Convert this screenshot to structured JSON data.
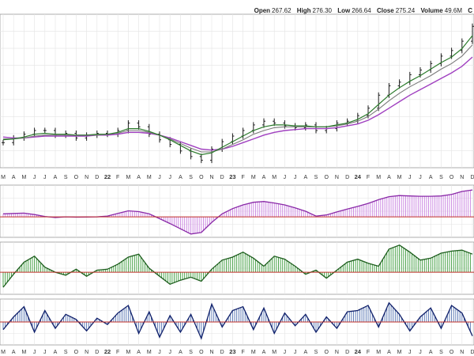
{
  "header": {
    "open_label": "Open",
    "open": "267.62",
    "high_label": "High",
    "high": "276.30",
    "low_label": "Low",
    "low": "266.64",
    "close_label": "Close",
    "close": "275.24",
    "volume_label": "Volume",
    "volume": "49.6M",
    "trailing": "C"
  },
  "colors": {
    "grid": "#e4e4e4",
    "price": "#1a1a1a",
    "ma_fast": "#2a7a2a",
    "ma_mid": "#7a7a7a",
    "ma_slow": "#a040c0",
    "panel1_fill": "#c880e0",
    "panel1_line": "#8a2aa8",
    "panel2_fill": "#3a9a3a",
    "panel2_line": "#1e5e1e",
    "panel3_fill": "#5070b0",
    "panel3_line": "#10206a",
    "zero": "#c0302a"
  },
  "chart_data": [
    {
      "type": "line",
      "panel": "price",
      "x_ticks": [
        "M",
        "A",
        "M",
        "J",
        "J",
        "A",
        "S",
        "O",
        "N",
        "D",
        "22",
        "F",
        "M",
        "A",
        "M",
        "J",
        "J",
        "A",
        "S",
        "O",
        "N",
        "D",
        "23",
        "F",
        "M",
        "A",
        "M",
        "J",
        "J",
        "A",
        "S",
        "O",
        "N",
        "D",
        "24",
        "F",
        "M",
        "A",
        "M",
        "J",
        "J",
        "A",
        "S",
        "O",
        "N",
        "D"
      ],
      "close": [
        147,
        152,
        156,
        160,
        160,
        155,
        157,
        152,
        155,
        157,
        156,
        160,
        168,
        164,
        156,
        150,
        145,
        138,
        132,
        128,
        140,
        148,
        154,
        160,
        166,
        170,
        168,
        165,
        163,
        166,
        160,
        162,
        168,
        170,
        176,
        184,
        198,
        208,
        212,
        220,
        225,
        232,
        240,
        246,
        256,
        272
      ],
      "ma_fast": [
        150,
        151,
        153,
        156,
        157,
        156,
        156,
        155,
        155,
        156,
        156,
        158,
        162,
        162,
        159,
        155,
        150,
        144,
        138,
        134,
        136,
        142,
        148,
        154,
        160,
        164,
        166,
        166,
        165,
        165,
        164,
        164,
        166,
        168,
        172,
        178,
        188,
        198,
        206,
        213,
        219,
        226,
        233,
        239,
        248,
        262
      ],
      "ma_mid": [
        151,
        151,
        152,
        154,
        155,
        155,
        155,
        155,
        155,
        155,
        156,
        157,
        160,
        160,
        158,
        155,
        151,
        146,
        141,
        137,
        137,
        140,
        145,
        150,
        156,
        160,
        163,
        164,
        164,
        164,
        164,
        164,
        165,
        167,
        170,
        175,
        183,
        192,
        200,
        207,
        213,
        219,
        226,
        232,
        240,
        252
      ],
      "ma_slow": [
        153,
        152,
        152,
        153,
        154,
        154,
        154,
        154,
        154,
        155,
        155,
        156,
        158,
        158,
        157,
        155,
        152,
        148,
        144,
        140,
        139,
        140,
        143,
        147,
        151,
        155,
        158,
        160,
        161,
        162,
        162,
        162,
        163,
        165,
        167,
        171,
        177,
        184,
        191,
        198,
        204,
        210,
        216,
        222,
        229,
        239
      ],
      "y_range": [
        120,
        285
      ]
    },
    {
      "type": "area",
      "panel": "indicator_1",
      "values": [
        0.8,
        0.9,
        1.0,
        0.6,
        0.1,
        -0.2,
        0.0,
        -0.1,
        -0.05,
        0.0,
        0.2,
        0.9,
        1.6,
        1.4,
        0.8,
        -0.5,
        -1.8,
        -3.2,
        -4.6,
        -4.2,
        -1.5,
        0.8,
        2.2,
        3.2,
        3.9,
        4.1,
        3.7,
        3.2,
        2.4,
        1.5,
        0.2,
        0.5,
        1.3,
        2.1,
        2.8,
        3.6,
        4.6,
        5.4,
        5.7,
        5.6,
        5.5,
        5.5,
        5.6,
        6.0,
        6.8,
        7.2
      ],
      "y_range": [
        -5.5,
        8.5
      ]
    },
    {
      "type": "area",
      "panel": "indicator_2",
      "values": [
        -1.5,
        -0.2,
        1.0,
        1.6,
        0.5,
        0.0,
        -0.3,
        0.3,
        -0.4,
        0.2,
        0.3,
        0.8,
        1.5,
        1.8,
        0.4,
        -0.4,
        -1.2,
        -0.8,
        -0.5,
        -0.9,
        0.3,
        1.2,
        1.5,
        2.0,
        1.4,
        0.6,
        1.6,
        1.3,
        0.6,
        -0.2,
        0.2,
        -0.6,
        0.2,
        1.0,
        1.3,
        0.9,
        0.6,
        2.3,
        2.7,
        2.0,
        1.2,
        1.4,
        1.9,
        2.1,
        2.2,
        1.8
      ],
      "y_range": [
        -2.2,
        3.0
      ]
    },
    {
      "type": "area",
      "panel": "indicator_3",
      "values": [
        -0.6,
        0.4,
        1.2,
        -0.8,
        0.9,
        -0.5,
        0.6,
        0.2,
        -0.7,
        0.3,
        -0.2,
        0.7,
        1.3,
        -0.9,
        0.8,
        -1.2,
        0.5,
        -0.8,
        0.6,
        -1.3,
        1.4,
        -0.4,
        0.9,
        1.2,
        -0.6,
        1.1,
        -0.9,
        0.7,
        -0.3,
        0.6,
        -0.8,
        0.4,
        -0.5,
        0.8,
        0.9,
        1.3,
        -0.4,
        1.5,
        0.6,
        -0.7,
        0.4,
        1.1,
        -0.5,
        1.3,
        0.7,
        -1.1
      ],
      "y_range": [
        -1.8,
        1.8
      ]
    }
  ]
}
